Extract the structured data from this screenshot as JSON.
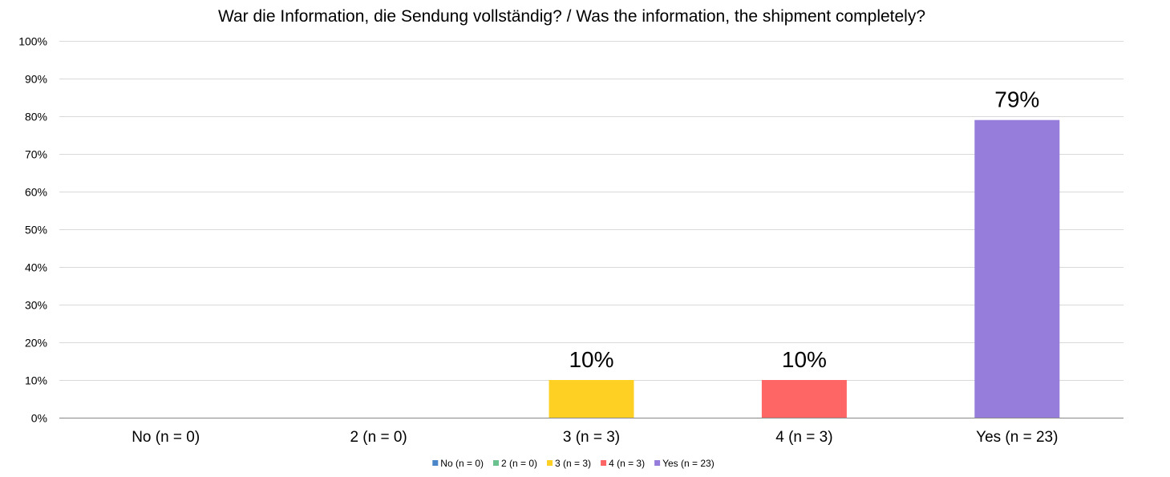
{
  "chart_data": {
    "type": "bar",
    "title": "War die Information, die Sendung vollständig? / Was the information, the shipment completely?",
    "xlabel": "",
    "ylabel": "",
    "categories": [
      "No (n = 0)",
      "2 (n = 0)",
      "3 (n = 3)",
      "4 (n = 3)",
      "Yes (n = 23)"
    ],
    "values": [
      0,
      0,
      10,
      10,
      79
    ],
    "data_labels": [
      "",
      "",
      "10%",
      "10%",
      "79%"
    ],
    "colors": [
      "#4a86c8",
      "#6cc28e",
      "#fdd023",
      "#fe6666",
      "#967ddc"
    ],
    "ylim": [
      0,
      100
    ],
    "yticks": [
      "0%",
      "10%",
      "20%",
      "30%",
      "40%",
      "50%",
      "60%",
      "70%",
      "80%",
      "90%",
      "100%"
    ],
    "grid": true,
    "legend": {
      "position": "bottom",
      "entries": [
        "No (n = 0)",
        "2 (n = 0)",
        "3 (n = 3)",
        "4 (n = 3)",
        "Yes (n = 23)"
      ]
    }
  }
}
